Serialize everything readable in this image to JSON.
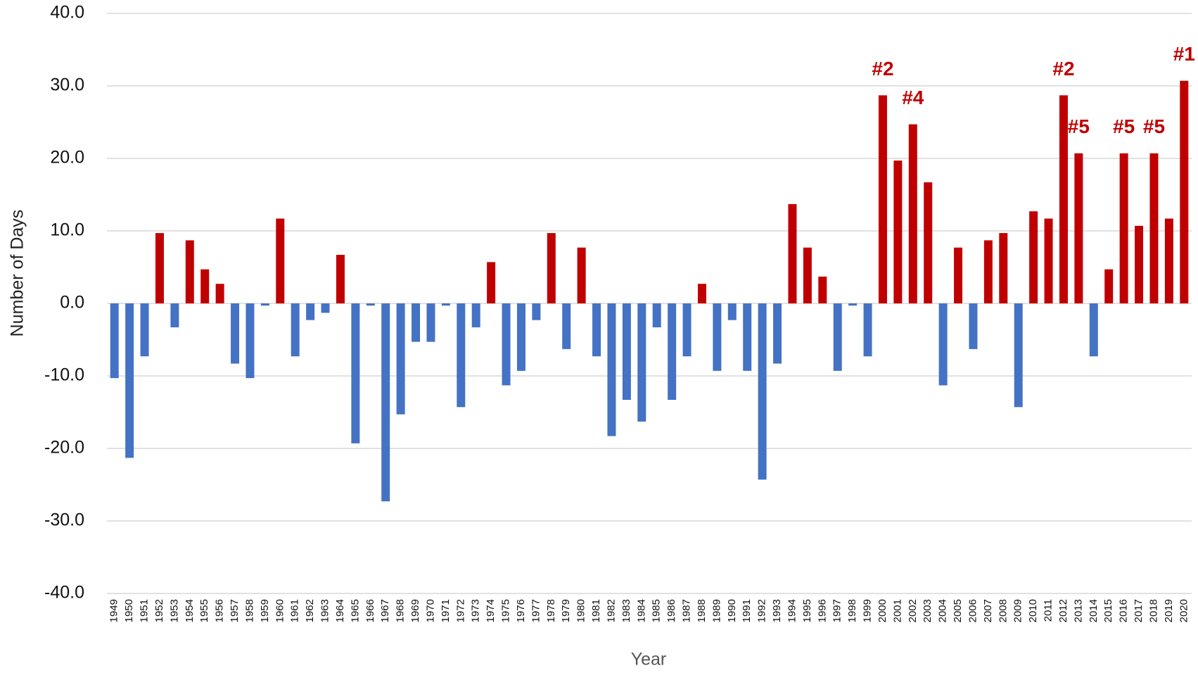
{
  "chart_data": {
    "type": "bar",
    "x_label": "Year",
    "y_label": "Number of Days",
    "categories": [
      "1949",
      "1950",
      "1951",
      "1952",
      "1953",
      "1954",
      "1955",
      "1956",
      "1957",
      "1958",
      "1959",
      "1960",
      "1961",
      "1962",
      "1963",
      "1964",
      "1965",
      "1966",
      "1967",
      "1968",
      "1969",
      "1970",
      "1971",
      "1972",
      "1973",
      "1974",
      "1975",
      "1976",
      "1977",
      "1978",
      "1979",
      "1980",
      "1981",
      "1982",
      "1983",
      "1984",
      "1985",
      "1986",
      "1987",
      "1988",
      "1989",
      "1990",
      "1991",
      "1992",
      "1993",
      "1994",
      "1995",
      "1996",
      "1997",
      "1998",
      "1999",
      "2000",
      "2001",
      "2002",
      "2003",
      "2004",
      "2005",
      "2006",
      "2007",
      "2008",
      "2009",
      "2010",
      "2011",
      "2012",
      "2013",
      "2014",
      "2015",
      "2016",
      "2017",
      "2018",
      "2019",
      "2020"
    ],
    "values": [
      -10.3,
      -21.3,
      -7.3,
      9.7,
      -3.3,
      8.7,
      4.7,
      2.7,
      -8.3,
      -10.3,
      -0.3,
      11.7,
      -7.3,
      -2.3,
      -1.3,
      6.7,
      -19.3,
      -0.3,
      -27.3,
      -15.3,
      -5.3,
      -5.3,
      -0.3,
      -14.3,
      -3.3,
      5.7,
      -11.3,
      -9.3,
      -2.3,
      9.7,
      -6.3,
      7.7,
      -7.3,
      -18.3,
      -13.3,
      -16.3,
      -3.3,
      -13.3,
      -7.3,
      2.7,
      -9.3,
      -2.3,
      -9.3,
      -24.3,
      -8.3,
      13.7,
      7.7,
      3.7,
      -9.3,
      -0.3,
      -7.3,
      28.7,
      19.7,
      24.7,
      16.7,
      -11.3,
      7.7,
      -6.3,
      8.7,
      9.7,
      -14.3,
      12.7,
      11.7,
      28.7,
      20.7,
      -7.3,
      4.7,
      20.7,
      10.7,
      20.7,
      11.7,
      30.7
    ],
    "positive_color": "#c00000",
    "negative_color": "#4472c4",
    "annotations": [
      {
        "category": "2000",
        "text": "#2"
      },
      {
        "category": "2002",
        "text": "#4"
      },
      {
        "category": "2012",
        "text": "#2"
      },
      {
        "category": "2013",
        "text": "#5"
      },
      {
        "category": "2016",
        "text": "#5"
      },
      {
        "category": "2018",
        "text": "#5"
      },
      {
        "category": "2020",
        "text": "#1"
      }
    ],
    "ylim": [
      -40,
      40
    ],
    "yticks": [
      {
        "value": -40,
        "label": "-40.0"
      },
      {
        "value": -30,
        "label": "-30.0"
      },
      {
        "value": -20,
        "label": "-20.0"
      },
      {
        "value": -10,
        "label": "-10.0"
      },
      {
        "value": 0,
        "label": "0.0"
      },
      {
        "value": 10,
        "label": "10.0"
      },
      {
        "value": 20,
        "label": "20.0"
      },
      {
        "value": 30,
        "label": "30.0"
      },
      {
        "value": 40,
        "label": "40.0"
      }
    ],
    "grid": true
  }
}
